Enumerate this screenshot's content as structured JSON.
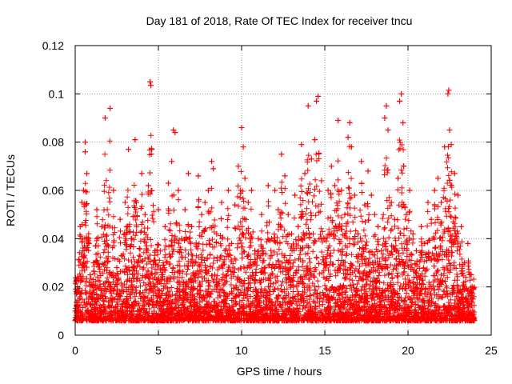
{
  "chart_data": {
    "type": "scatter",
    "title": "Day 181 of 2018, Rate Of TEC Index for receiver tncu",
    "xlabel": "GPS time / hours",
    "ylabel": "ROTI / TECUs",
    "xlim": [
      0,
      24
    ],
    "ylim": [
      0,
      0.12
    ],
    "xticks": [
      0,
      5,
      10,
      15,
      20,
      25
    ],
    "xtick_labels": [
      "0",
      "5",
      "10",
      "15",
      "20",
      "25"
    ],
    "yticks": [
      0,
      0.02,
      0.04,
      0.06,
      0.08,
      0.1,
      0.12
    ],
    "ytick_labels": [
      "0",
      "0.02",
      "0.04",
      "0.06",
      "0.08",
      "0.1",
      "0.12"
    ],
    "grid": true,
    "marker": "+",
    "color": "#ff0000",
    "series": [
      {
        "name": "ROTI",
        "points": [
          [
            0.1,
            0.012
          ],
          [
            0.2,
            0.018
          ],
          [
            0.3,
            0.045
          ],
          [
            0.4,
            0.055
          ],
          [
            0.5,
            0.06
          ],
          [
            0.6,
            0.076
          ],
          [
            0.6,
            0.08
          ],
          [
            0.7,
            0.067
          ],
          [
            0.8,
            0.038
          ],
          [
            0.9,
            0.025
          ],
          [
            1.0,
            0.015
          ],
          [
            1.1,
            0.03
          ],
          [
            1.3,
            0.052
          ],
          [
            1.5,
            0.02
          ],
          [
            1.6,
            0.045
          ],
          [
            1.8,
            0.09
          ],
          [
            2.0,
            0.037
          ],
          [
            2.1,
            0.094
          ],
          [
            2.3,
            0.06
          ],
          [
            2.5,
            0.028
          ],
          [
            2.7,
            0.048
          ],
          [
            2.9,
            0.018
          ],
          [
            3.0,
            0.055
          ],
          [
            3.2,
            0.077
          ],
          [
            3.4,
            0.04
          ],
          [
            3.6,
            0.081
          ],
          [
            3.8,
            0.03
          ],
          [
            4.0,
            0.067
          ],
          [
            4.2,
            0.05
          ],
          [
            4.4,
            0.062
          ],
          [
            4.5,
            0.105
          ],
          [
            4.55,
            0.1035
          ],
          [
            4.6,
            0.077
          ],
          [
            4.8,
            0.035
          ],
          [
            5.0,
            0.052
          ],
          [
            5.2,
            0.025
          ],
          [
            5.4,
            0.045
          ],
          [
            5.6,
            0.063
          ],
          [
            5.8,
            0.072
          ],
          [
            5.9,
            0.085
          ],
          [
            6.0,
            0.084
          ],
          [
            6.2,
            0.06
          ],
          [
            6.4,
            0.04
          ],
          [
            6.6,
            0.052
          ],
          [
            6.8,
            0.067
          ],
          [
            7.0,
            0.045
          ],
          [
            7.2,
            0.03
          ],
          [
            7.4,
            0.066
          ],
          [
            7.6,
            0.05
          ],
          [
            7.8,
            0.055
          ],
          [
            8.0,
            0.06
          ],
          [
            8.2,
            0.072
          ],
          [
            8.3,
            0.069
          ],
          [
            8.5,
            0.042
          ],
          [
            8.8,
            0.055
          ],
          [
            9.0,
            0.035
          ],
          [
            9.2,
            0.06
          ],
          [
            9.4,
            0.038
          ],
          [
            9.6,
            0.054
          ],
          [
            9.8,
            0.07
          ],
          [
            10.0,
            0.086
          ],
          [
            10.1,
            0.078
          ],
          [
            10.2,
            0.065
          ],
          [
            10.4,
            0.055
          ],
          [
            10.6,
            0.06
          ],
          [
            10.8,
            0.035
          ],
          [
            11.0,
            0.04
          ],
          [
            11.2,
            0.05
          ],
          [
            11.4,
            0.028
          ],
          [
            11.6,
            0.062
          ],
          [
            11.8,
            0.04
          ],
          [
            12.0,
            0.06
          ],
          [
            12.2,
            0.052
          ],
          [
            12.4,
            0.075
          ],
          [
            12.6,
            0.066
          ],
          [
            12.8,
            0.05
          ],
          [
            13.0,
            0.042
          ],
          [
            13.2,
            0.058
          ],
          [
            13.4,
            0.045
          ],
          [
            13.6,
            0.079
          ],
          [
            13.8,
            0.067
          ],
          [
            14.0,
            0.095
          ],
          [
            14.2,
            0.073
          ],
          [
            14.4,
            0.081
          ],
          [
            14.5,
            0.097
          ],
          [
            14.6,
            0.099
          ],
          [
            14.8,
            0.064
          ],
          [
            15.0,
            0.04
          ],
          [
            15.2,
            0.06
          ],
          [
            15.4,
            0.07
          ],
          [
            15.6,
            0.062
          ],
          [
            15.8,
            0.089
          ],
          [
            16.0,
            0.06
          ],
          [
            16.2,
            0.05
          ],
          [
            16.4,
            0.082
          ],
          [
            16.5,
            0.088
          ],
          [
            16.6,
            0.078
          ],
          [
            16.8,
            0.058
          ],
          [
            17.0,
            0.042
          ],
          [
            17.2,
            0.072
          ],
          [
            17.4,
            0.054
          ],
          [
            17.6,
            0.068
          ],
          [
            17.8,
            0.058
          ],
          [
            18.0,
            0.05
          ],
          [
            18.2,
            0.045
          ],
          [
            18.4,
            0.035
          ],
          [
            18.6,
            0.09
          ],
          [
            18.7,
            0.095
          ],
          [
            18.8,
            0.085
          ],
          [
            19.0,
            0.055
          ],
          [
            19.2,
            0.048
          ],
          [
            19.4,
            0.065
          ],
          [
            19.5,
            0.097
          ],
          [
            19.6,
            0.1
          ],
          [
            19.7,
            0.088
          ],
          [
            19.9,
            0.05
          ],
          [
            20.1,
            0.06
          ],
          [
            20.3,
            0.042
          ],
          [
            20.5,
            0.035
          ],
          [
            20.8,
            0.045
          ],
          [
            21.0,
            0.038
          ],
          [
            21.2,
            0.055
          ],
          [
            21.4,
            0.048
          ],
          [
            21.6,
            0.06
          ],
          [
            21.8,
            0.065
          ],
          [
            22.0,
            0.055
          ],
          [
            22.2,
            0.078
          ],
          [
            22.4,
            0.1
          ],
          [
            22.45,
            0.1015
          ],
          [
            22.5,
            0.085
          ],
          [
            22.6,
            0.079
          ],
          [
            22.8,
            0.067
          ],
          [
            23.0,
            0.058
          ],
          [
            23.2,
            0.045
          ],
          [
            23.4,
            0.03
          ],
          [
            23.6,
            0.038
          ],
          [
            23.8,
            0.025
          ],
          [
            23.9,
            0.015
          ],
          [
            0.0,
            0.01
          ],
          [
            0.3,
            0.008
          ],
          [
            1.2,
            0.011
          ],
          [
            2.4,
            0.009
          ],
          [
            3.5,
            0.012
          ],
          [
            4.7,
            0.008
          ],
          [
            5.7,
            0.013
          ],
          [
            6.9,
            0.009
          ],
          [
            8.1,
            0.011
          ],
          [
            9.3,
            0.008
          ],
          [
            10.5,
            0.012
          ],
          [
            11.7,
            0.009
          ],
          [
            12.9,
            0.011
          ],
          [
            14.1,
            0.008
          ],
          [
            15.3,
            0.012
          ],
          [
            16.7,
            0.009
          ],
          [
            17.9,
            0.011
          ],
          [
            19.1,
            0.008
          ],
          [
            20.2,
            0.012
          ],
          [
            21.5,
            0.009
          ],
          [
            22.7,
            0.011
          ],
          [
            23.7,
            0.008
          ]
        ]
      }
    ]
  }
}
